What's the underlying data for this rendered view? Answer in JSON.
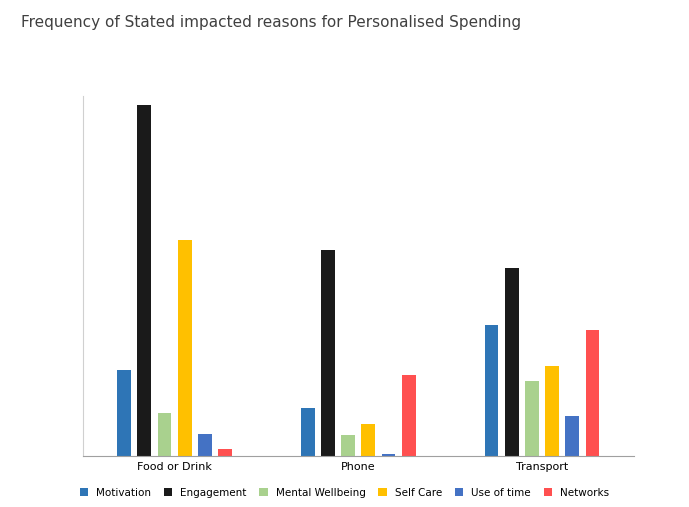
{
  "chart_data": {
    "type": "bar",
    "title": "Frequency of Stated impacted reasons for Personalised Spending",
    "categories": [
      "Food or Drink",
      "Phone",
      "Transport"
    ],
    "series": [
      {
        "name": "Motivation",
        "color": "#2e75b6",
        "values": [
          86,
          48,
          131
        ]
      },
      {
        "name": "Engagement",
        "color": "#1a1a1a",
        "values": [
          351,
          206,
          188
        ]
      },
      {
        "name": "Mental Wellbeing",
        "color": "#a9d18e",
        "values": [
          43,
          21,
          75
        ]
      },
      {
        "name": "Self Care",
        "color": "#ffc000",
        "values": [
          216,
          32,
          90
        ]
      },
      {
        "name": "Use of time",
        "color": "#4472c4",
        "values": [
          22,
          2,
          40
        ]
      },
      {
        "name": "Networks",
        "color": "#ff5050",
        "values": [
          7,
          81,
          126
        ]
      }
    ],
    "ylim": [
      0,
      360
    ],
    "grid": false,
    "legend": "lower center",
    "tick_labels": "x"
  }
}
